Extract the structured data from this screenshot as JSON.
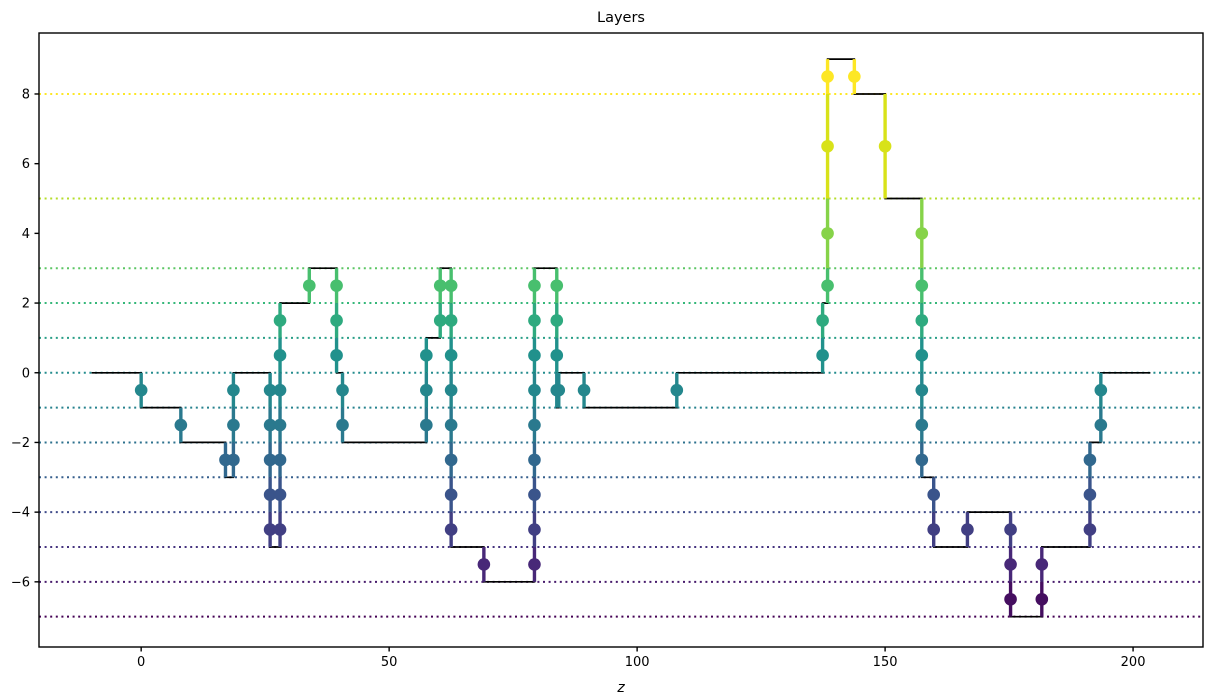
{
  "title": "Layers",
  "xlabel": "z",
  "chart_data": {
    "type": "line",
    "subtype": "step-plot-with-layer-markers",
    "title": "Layers",
    "xlabel": "z",
    "ylabel": "",
    "legend": "none",
    "xlim": [
      -20.6,
      214.1
    ],
    "ylim": [
      -7.87,
      9.75
    ],
    "xticks": [
      0,
      50,
      100,
      150,
      200
    ],
    "yticks": [
      8,
      6,
      4,
      2,
      0,
      -2,
      -4,
      -6
    ],
    "line_color": "#000000",
    "background_color": "#ffffff",
    "spine_color": "#000000",
    "dotted_gridline_levels": [
      8,
      5,
      3,
      2,
      1,
      0,
      -1,
      -2,
      -3,
      -4,
      -5,
      -6,
      -7
    ],
    "color_norm": {
      "vmin": -7,
      "vmax": 8
    },
    "viridis_stops": [
      "#440154",
      "#482878",
      "#3e4a89",
      "#31688e",
      "#26828e",
      "#21918c",
      "#35b779",
      "#6ece58",
      "#b5de2b",
      "#d8e219",
      "#fde725"
    ],
    "plateaus": [
      [
        -10,
        0,
        0
      ],
      [
        0,
        8,
        -1
      ],
      [
        8,
        17,
        -2
      ],
      [
        17,
        18.6,
        -3
      ],
      [
        18.6,
        26,
        0
      ],
      [
        26,
        28,
        -5
      ],
      [
        28,
        33.9,
        2
      ],
      [
        33.9,
        39.4,
        3
      ],
      [
        39.4,
        40.6,
        0
      ],
      [
        40.6,
        57.5,
        -2
      ],
      [
        57.5,
        60.3,
        1
      ],
      [
        60.3,
        62.5,
        3
      ],
      [
        62.5,
        69.1,
        -5
      ],
      [
        69.1,
        79.3,
        -6
      ],
      [
        79.3,
        83.8,
        3
      ],
      [
        83.8,
        84.2,
        -1
      ],
      [
        84.2,
        89.3,
        0
      ],
      [
        89.3,
        108,
        -1
      ],
      [
        108,
        137.4,
        0
      ],
      [
        137.4,
        138.4,
        2
      ],
      [
        138.4,
        143.8,
        9
      ],
      [
        143.8,
        150,
        8
      ],
      [
        150,
        157.4,
        5
      ],
      [
        157.4,
        159.8,
        -3
      ],
      [
        159.8,
        166.6,
        -5
      ],
      [
        166.6,
        175.3,
        -4
      ],
      [
        175.3,
        181.6,
        -7
      ],
      [
        181.6,
        191.3,
        -5
      ],
      [
        191.3,
        193.5,
        -2
      ],
      [
        193.5,
        203.5,
        0
      ]
    ],
    "transitions": [
      {
        "x": 0,
        "levels": [
          0,
          -1
        ]
      },
      {
        "x": 8,
        "levels": [
          -1,
          -2
        ]
      },
      {
        "x": 17,
        "levels": [
          -2,
          -3
        ]
      },
      {
        "x": 18.6,
        "levels": [
          -3,
          -2,
          -1,
          0
        ]
      },
      {
        "x": 26,
        "levels": [
          0,
          -1,
          -2,
          -3,
          -4,
          -5
        ]
      },
      {
        "x": 28,
        "levels": [
          -5,
          -4,
          -3,
          -2,
          -1,
          0,
          1,
          2
        ]
      },
      {
        "x": 33.9,
        "levels": [
          2,
          3
        ]
      },
      {
        "x": 39.4,
        "levels": [
          3,
          2,
          1,
          0
        ]
      },
      {
        "x": 40.6,
        "levels": [
          0,
          -1,
          -2
        ]
      },
      {
        "x": 57.5,
        "levels": [
          -2,
          -1,
          0,
          1
        ]
      },
      {
        "x": 60.3,
        "levels": [
          1,
          2,
          3
        ]
      },
      {
        "x": 62.5,
        "levels": [
          3,
          2,
          1,
          0,
          -1,
          -2,
          -3,
          -4,
          -5
        ]
      },
      {
        "x": 69.1,
        "levels": [
          -5,
          -6
        ]
      },
      {
        "x": 79.3,
        "levels": [
          -6,
          -5,
          -4,
          -3,
          -2,
          -1,
          0,
          1,
          2,
          3
        ]
      },
      {
        "x": 83.8,
        "levels": [
          3,
          2,
          1,
          0,
          -1
        ]
      },
      {
        "x": 84.2,
        "levels": [
          -1,
          0
        ]
      },
      {
        "x": 89.3,
        "levels": [
          0,
          -1
        ]
      },
      {
        "x": 108,
        "levels": [
          -1,
          0
        ]
      },
      {
        "x": 137.4,
        "levels": [
          0,
          1,
          2
        ]
      },
      {
        "x": 138.4,
        "levels": [
          2,
          3,
          5,
          8,
          9
        ]
      },
      {
        "x": 143.8,
        "levels": [
          9,
          8
        ]
      },
      {
        "x": 150,
        "levels": [
          8,
          5
        ]
      },
      {
        "x": 157.4,
        "levels": [
          5,
          3,
          2,
          1,
          0,
          -1,
          -2,
          -3
        ]
      },
      {
        "x": 159.8,
        "levels": [
          -3,
          -4,
          -5
        ]
      },
      {
        "x": 166.6,
        "levels": [
          -5,
          -4
        ]
      },
      {
        "x": 175.3,
        "levels": [
          -4,
          -5,
          -6,
          -7
        ]
      },
      {
        "x": 181.6,
        "levels": [
          -7,
          -6,
          -5
        ]
      },
      {
        "x": 191.3,
        "levels": [
          -5,
          -4,
          -3,
          -2
        ]
      },
      {
        "x": 193.5,
        "levels": [
          -2,
          -1,
          0
        ]
      }
    ]
  }
}
